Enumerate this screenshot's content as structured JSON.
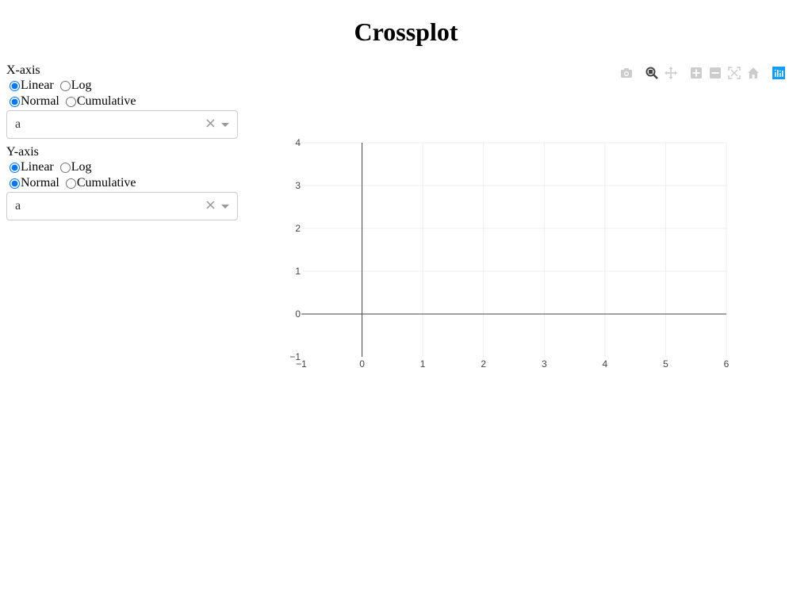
{
  "title": "Crossplot",
  "x_axis": {
    "label": "X-axis",
    "scale_options": [
      "Linear",
      "Log"
    ],
    "scale_selected": "Linear",
    "mode_options": [
      "Normal",
      "Cumulative"
    ],
    "mode_selected": "Normal",
    "selected_value": "a",
    "clear_glyph": "×"
  },
  "y_axis": {
    "label": "Y-axis",
    "scale_options": [
      "Linear",
      "Log"
    ],
    "scale_selected": "Linear",
    "mode_options": [
      "Normal",
      "Cumulative"
    ],
    "mode_selected": "Normal",
    "selected_value": "a",
    "clear_glyph": "×"
  },
  "modebar": {
    "buttons": [
      {
        "name": "camera-icon",
        "color": "#cccccc"
      },
      {
        "name": "zoom-icon",
        "color": "#444444"
      },
      {
        "name": "pan-icon",
        "color": "#cccccc"
      },
      {
        "name": "zoom-in-icon",
        "color": "#cccccc"
      },
      {
        "name": "zoom-out-icon",
        "color": "#cccccc"
      },
      {
        "name": "autoscale-icon",
        "color": "#cccccc"
      },
      {
        "name": "home-icon",
        "color": "#cccccc"
      },
      {
        "name": "plotly-logo-icon",
        "color": "#119dff"
      }
    ]
  },
  "chart_data": {
    "type": "scatter",
    "series": [],
    "xlim": [
      -1,
      6
    ],
    "ylim": [
      -1,
      4
    ],
    "x_ticks": [
      "−1",
      "0",
      "1",
      "2",
      "3",
      "4",
      "5",
      "6"
    ],
    "y_ticks": [
      "−1",
      "0",
      "1",
      "2",
      "3",
      "4"
    ],
    "x_tick_values": [
      -1,
      0,
      1,
      2,
      3,
      4,
      5,
      6
    ],
    "y_tick_values": [
      -1,
      0,
      1,
      2,
      3,
      4
    ],
    "grid": true,
    "grid_color": "#eeeeee",
    "zeroline_color": "#444444"
  }
}
